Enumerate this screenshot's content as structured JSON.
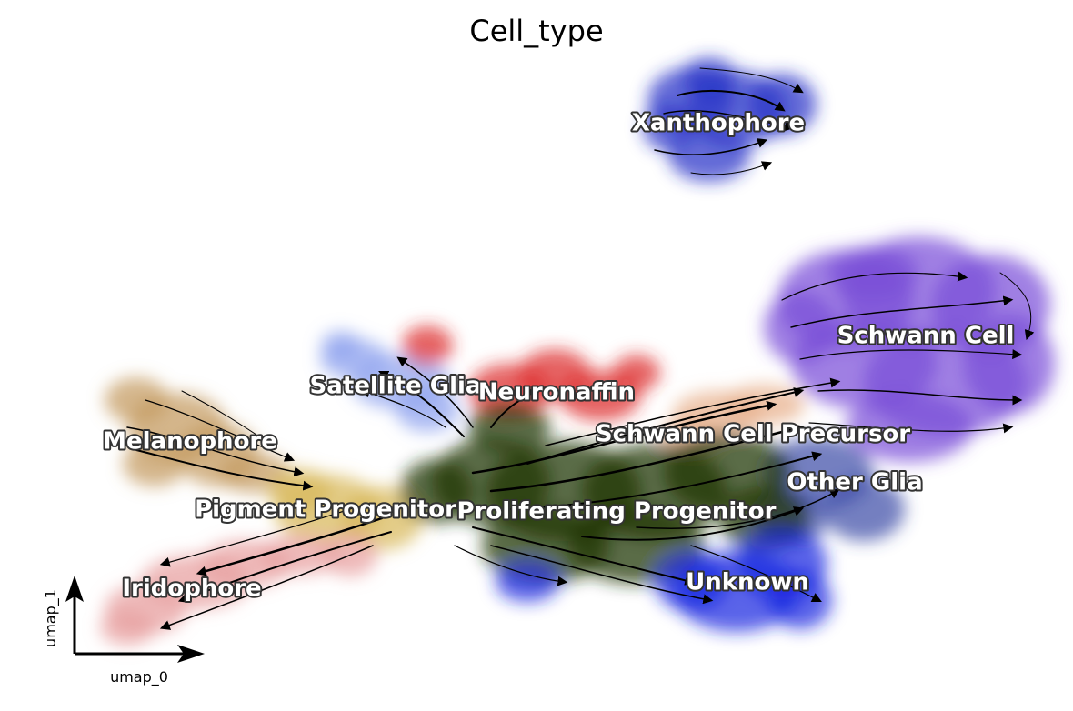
{
  "chart_data": {
    "type": "scatter",
    "title": "Cell_type",
    "xlabel": "umap_0",
    "ylabel": "umap_1",
    "overlay": "velocity streamlines",
    "clusters": [
      {
        "label": "Xanthophore",
        "color": "#2a35c8"
      },
      {
        "label": "Schwann Cell",
        "color": "#7a4fd8"
      },
      {
        "label": "Satellite Glia",
        "color": "#8fa2ee"
      },
      {
        "label": "Neuronaffin",
        "color": "#dd2a2a"
      },
      {
        "label": "Melanophore",
        "color": "#c49a5e"
      },
      {
        "label": "Schwann Cell Precursor",
        "color": "#e8b08c"
      },
      {
        "label": "Other Glia",
        "color": "#3f4ea8"
      },
      {
        "label": "Pigment Progenitor",
        "color": "#d8b85a"
      },
      {
        "label": "Proliferating Progenitor",
        "color": "#1f3300"
      },
      {
        "label": "Unknown",
        "color": "#1a28e0"
      },
      {
        "label": "Iridophore",
        "color": "#e8a0a0"
      }
    ]
  }
}
